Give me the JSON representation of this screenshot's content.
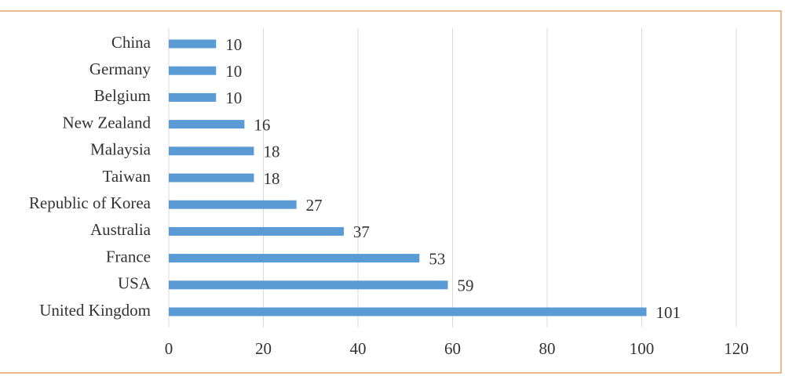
{
  "chart_data": {
    "type": "bar",
    "orientation": "horizontal",
    "categories": [
      "China",
      "Germany",
      "Belgium",
      "New Zealand",
      "Malaysia",
      "Taiwan",
      "Republic of Korea",
      "Australia",
      "France",
      "USA",
      "United Kingdom"
    ],
    "values": [
      10,
      10,
      10,
      16,
      18,
      18,
      27,
      37,
      53,
      59,
      101
    ],
    "color": "#5b9bd5",
    "xlim": [
      0,
      120
    ],
    "xticks": [
      0,
      20,
      40,
      60,
      80,
      100,
      120
    ],
    "grid": true
  }
}
